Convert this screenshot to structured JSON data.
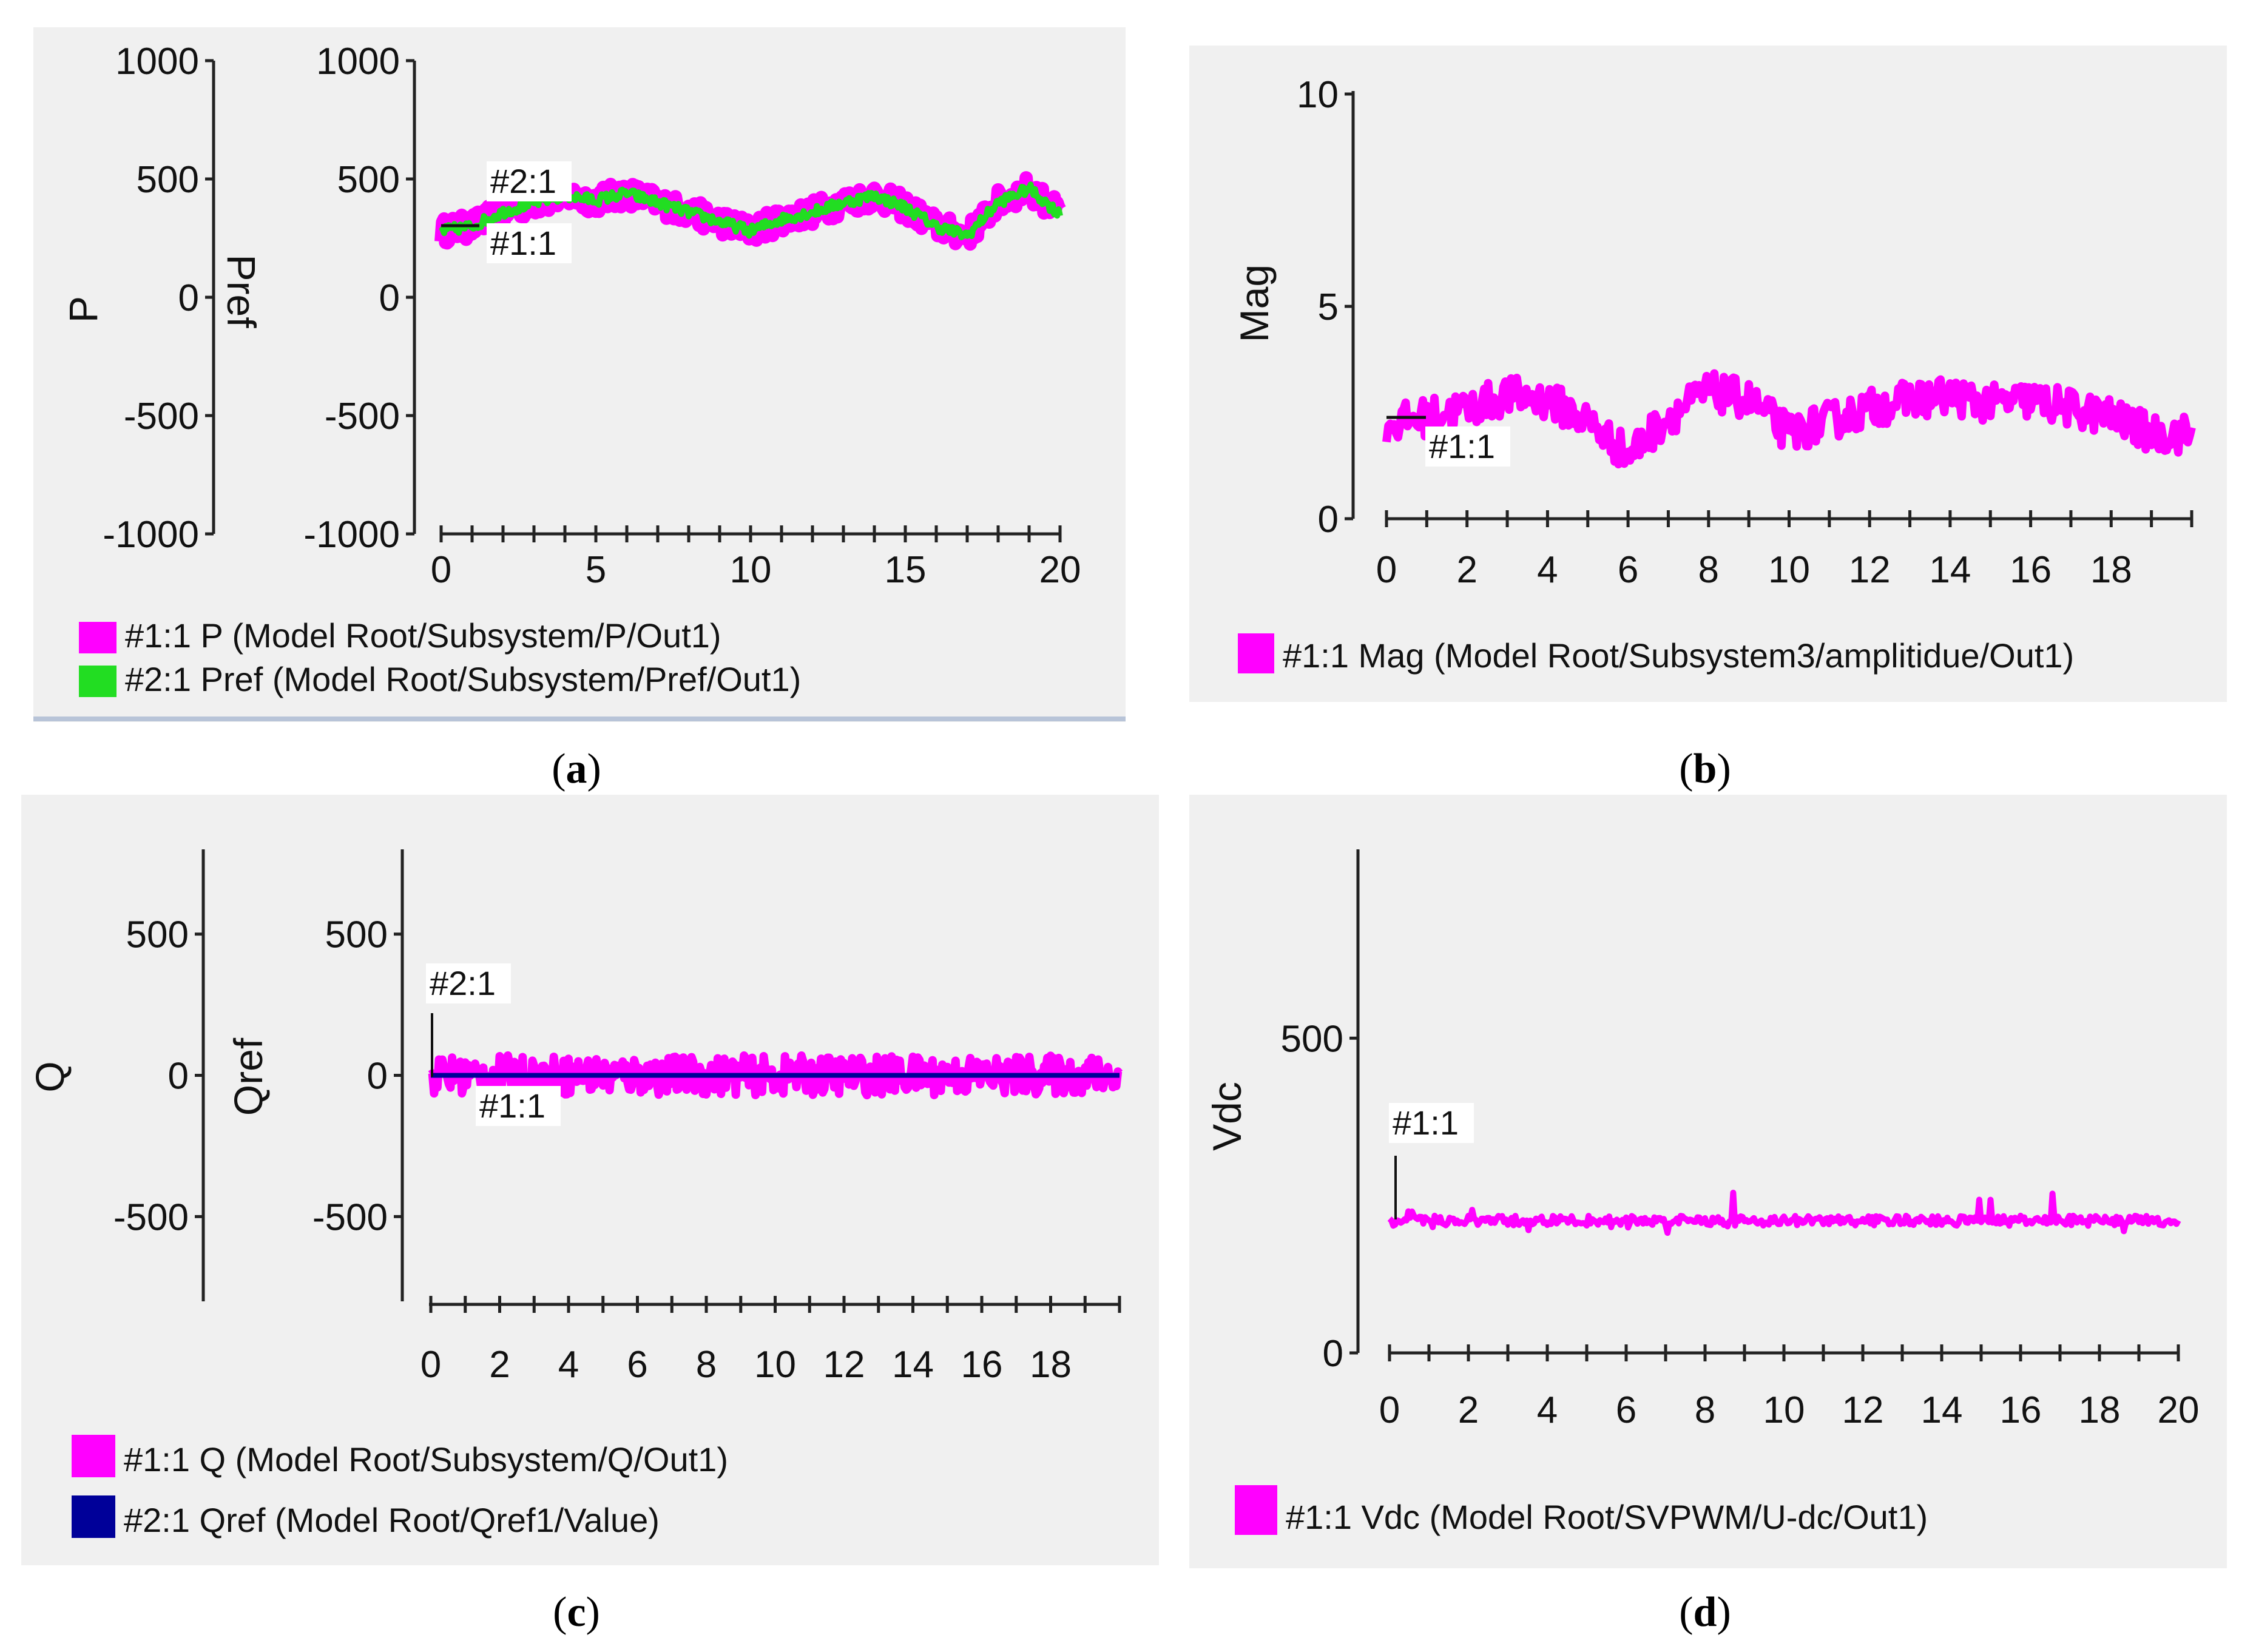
{
  "chart_data": [
    {
      "panel": "(a)",
      "caption_letter": "a",
      "type": "line",
      "x_ticks": [
        "0",
        "5",
        "10",
        "15",
        "20"
      ],
      "xlim": [
        0,
        20
      ],
      "ylim": [
        -1000,
        1000
      ],
      "y_ticks": [
        "1000",
        "500",
        "0",
        "-500",
        "-1000"
      ],
      "ylabels": [
        "P",
        "Pref"
      ],
      "series": [
        {
          "name": "#1:1 P (Model Root/Subsystem/P/Out1)",
          "tag": "#1:1",
          "color": "#ff00ff",
          "x": [
            0,
            1,
            2,
            3,
            4,
            5,
            6,
            7,
            8,
            9,
            10,
            11,
            12,
            13,
            14,
            15,
            16,
            17,
            18,
            19,
            20
          ],
          "values": [
            280,
            300,
            360,
            400,
            430,
            410,
            440,
            400,
            360,
            320,
            280,
            330,
            360,
            400,
            430,
            380,
            300,
            260,
            400,
            460,
            350
          ]
        },
        {
          "name": "#2:1 Pref (Model Root/Subsystem/Pref/Out1)",
          "tag": "#2:1",
          "color": "#22dd22",
          "x": [
            0,
            1,
            2,
            3,
            4,
            5,
            6,
            7,
            8,
            9,
            10,
            11,
            12,
            13,
            14,
            15,
            16,
            17,
            18,
            19,
            20
          ],
          "values": [
            280,
            300,
            360,
            400,
            430,
            410,
            440,
            400,
            360,
            320,
            280,
            330,
            360,
            400,
            430,
            380,
            300,
            260,
            400,
            460,
            350
          ]
        }
      ]
    },
    {
      "panel": "(b)",
      "caption_letter": "b",
      "type": "line",
      "x_ticks": [
        "0",
        "2",
        "4",
        "6",
        "8",
        "10",
        "12",
        "14",
        "16",
        "18"
      ],
      "xlim": [
        0,
        20
      ],
      "ylim": [
        0,
        10
      ],
      "y_ticks": [
        "10",
        "5",
        "0"
      ],
      "ylabels": [
        "Mag"
      ],
      "series": [
        {
          "name": "#1:1 Mag (Model Root/Subsystem3/amplitidue/Out1)",
          "tag": "#1:1",
          "color": "#ff00ff",
          "x": [
            0,
            1,
            2,
            3,
            4,
            5,
            6,
            7,
            8,
            9,
            10,
            11,
            12,
            13,
            14,
            15,
            16,
            17,
            18,
            19,
            20
          ],
          "values": [
            2.2,
            2.4,
            2.6,
            2.9,
            2.8,
            2.3,
            1.5,
            2.4,
            3.0,
            2.8,
            2.0,
            2.3,
            2.6,
            2.8,
            2.9,
            2.7,
            2.8,
            2.6,
            2.4,
            2.0,
            2.0
          ]
        }
      ]
    },
    {
      "panel": "(c)",
      "caption_letter": "c",
      "type": "line",
      "x_ticks": [
        "0",
        "2",
        "4",
        "6",
        "8",
        "10",
        "12",
        "14",
        "16",
        "18"
      ],
      "xlim": [
        0,
        20
      ],
      "ylim": [
        -800,
        800
      ],
      "y_ticks": [
        "500",
        "0",
        "-500"
      ],
      "ylabels": [
        "Q",
        "Qref"
      ],
      "series": [
        {
          "name": "#1:1 Q (Model Root/Subsystem/Q/Out1)",
          "tag": "#1:1",
          "color": "#ff00ff",
          "x": [
            0,
            2,
            4,
            6,
            8,
            10,
            12,
            14,
            16,
            18,
            20
          ],
          "values": [
            0,
            0,
            0,
            0,
            0,
            0,
            0,
            0,
            0,
            0,
            0
          ]
        },
        {
          "name": "#2:1 Qref (Model Root/Qref1/Value)",
          "tag": "#2:1",
          "color": "#000099",
          "x": [
            0,
            20
          ],
          "values": [
            0,
            0
          ]
        }
      ]
    },
    {
      "panel": "(d)",
      "caption_letter": "d",
      "type": "line",
      "x_ticks": [
        "0",
        "2",
        "4",
        "6",
        "8",
        "10",
        "12",
        "14",
        "16",
        "18",
        "20"
      ],
      "xlim": [
        0,
        20
      ],
      "ylim": [
        0,
        800
      ],
      "y_ticks": [
        "500",
        "0"
      ],
      "ylabels": [
        "Vdc"
      ],
      "series": [
        {
          "name": "#1:1 Vdc (Model Root/SVPWM/U-dc/Out1)",
          "tag": "#1:1",
          "color": "#ff00ff",
          "x": [
            0,
            20
          ],
          "values": [
            210,
            210
          ]
        }
      ]
    }
  ]
}
